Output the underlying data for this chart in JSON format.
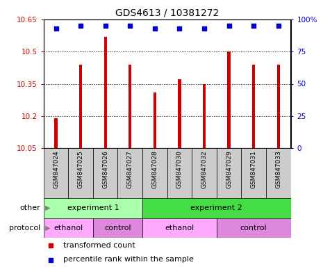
{
  "title": "GDS4613 / 10381272",
  "samples": [
    "GSM847024",
    "GSM847025",
    "GSM847026",
    "GSM847027",
    "GSM847028",
    "GSM847030",
    "GSM847032",
    "GSM847029",
    "GSM847031",
    "GSM847033"
  ],
  "bar_values": [
    10.19,
    10.44,
    10.57,
    10.44,
    10.31,
    10.37,
    10.35,
    10.5,
    10.44,
    10.44
  ],
  "percentile_values": [
    93,
    95,
    95,
    95,
    93,
    93,
    93,
    95,
    95,
    95
  ],
  "ylim_left": [
    10.05,
    10.65
  ],
  "ylim_right": [
    0,
    100
  ],
  "yticks_left": [
    10.05,
    10.2,
    10.35,
    10.5,
    10.65
  ],
  "yticks_right": [
    0,
    25,
    50,
    75,
    100
  ],
  "ytick_labels_left": [
    "10.05",
    "10.2",
    "10.35",
    "10.5",
    "10.65"
  ],
  "ytick_labels_right": [
    "0",
    "25",
    "50",
    "75",
    "100%"
  ],
  "bar_color": "#cc0000",
  "dot_color": "#0000cc",
  "bar_bottom": 10.05,
  "groups_other": [
    {
      "label": "experiment 1",
      "start": 0,
      "end": 4,
      "color": "#aaffaa"
    },
    {
      "label": "experiment 2",
      "start": 4,
      "end": 10,
      "color": "#44dd44"
    }
  ],
  "groups_protocol": [
    {
      "label": "ethanol",
      "start": 0,
      "end": 2,
      "color": "#ffaaff"
    },
    {
      "label": "control",
      "start": 2,
      "end": 4,
      "color": "#dd88dd"
    },
    {
      "label": "ethanol",
      "start": 4,
      "end": 7,
      "color": "#ffaaff"
    },
    {
      "label": "control",
      "start": 7,
      "end": 10,
      "color": "#dd88dd"
    }
  ],
  "legend_items": [
    {
      "label": "transformed count",
      "color": "#cc0000"
    },
    {
      "label": "percentile rank within the sample",
      "color": "#0000cc"
    }
  ],
  "label_other": "other",
  "label_protocol": "protocol",
  "title_fontsize": 10,
  "tick_fontsize": 7.5,
  "sample_fontsize": 6.5,
  "row_fontsize": 8,
  "legend_fontsize": 8
}
